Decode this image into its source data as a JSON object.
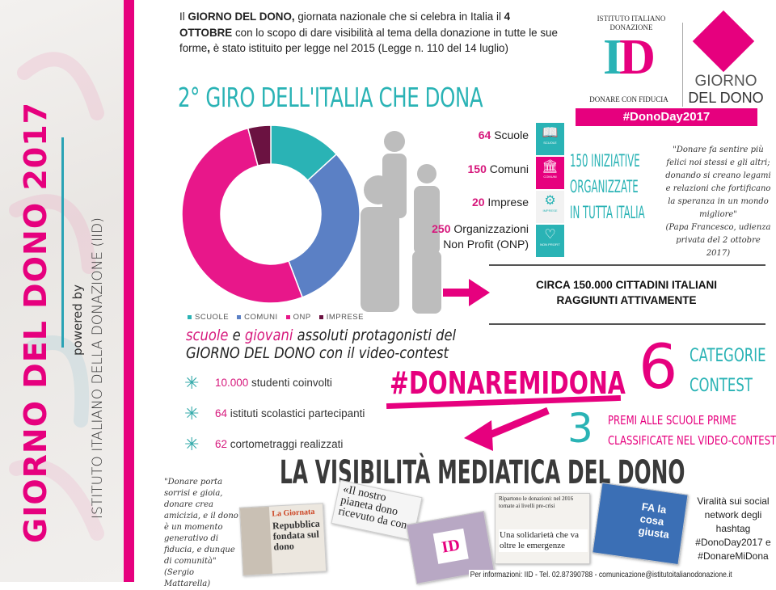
{
  "sidebar": {
    "title": "GIORNO DEL DONO 2017",
    "powered_by": "powered by",
    "org": "ISTITUTO ITALIANO DELLA DONAZIONE (IID)"
  },
  "intro": {
    "p1": "Il ",
    "b1": "GIORNO DEL DONO,",
    "p2": " giornata nazionale che si celebra in Italia il ",
    "b2": "4 OTTOBRE",
    "p3": " con lo scopo di dare visibilità al tema della donazione in tutte le sue forme",
    "b3": ",",
    "p4": " è stato istituito per legge nel 2015 (Legge n. 110 del 14 luglio)"
  },
  "logo": {
    "arc_text": "ISTITUTO ITALIANO DONAZIONE",
    "mark": "ID",
    "tagline": "DONARE CON FIDUCIA",
    "giorno1": "GIORNO",
    "giorno2": "DEL DONO",
    "hashtag": "#DonoDay2017"
  },
  "title": "2° GIRO DELL'ITALIA CHE DONA",
  "chart_data": {
    "type": "pie",
    "donut": true,
    "categories": [
      "SCUOLE",
      "COMUNI",
      "ONP",
      "IMPRESE"
    ],
    "values": [
      64,
      150,
      250,
      20
    ],
    "colors": [
      "#2ab3b5",
      "#5b80c5",
      "#e8178a",
      "#6b1241"
    ],
    "legend": "bottom"
  },
  "stats": [
    {
      "num": "64",
      "label": "Scuole"
    },
    {
      "num": "150",
      "label": "Comuni"
    },
    {
      "num": "20",
      "label": "Imprese"
    },
    {
      "num": "250",
      "label": "Organizzazioni",
      "label2": "Non Profit (ONP)"
    }
  ],
  "strip": [
    {
      "icon": "book-icon",
      "glyph": "📖",
      "label": "SCUOLE",
      "color": "#2ab3b5"
    },
    {
      "icon": "building-icon",
      "glyph": "🏛",
      "label": "COMUNI",
      "color": "#e6007e"
    },
    {
      "icon": "gears-icon",
      "glyph": "⚙",
      "label": "IMPRESE",
      "color": "#f2f2f2"
    },
    {
      "icon": "heart-icon",
      "glyph": "♡",
      "label": "NON PROFIT",
      "color": "#2ab3b5"
    }
  ],
  "iniziative": [
    "150 INIZIATIVE",
    "ORGANIZZATE",
    "IN TUTTA ITALIA"
  ],
  "papa_quote": "\"Donare fa sentire più felici noi stessi e gli altri; donando si creano legami e relazioni che fortificano la speranza in un mondo migliore\"",
  "papa_source": "(Papa Francesco, udienza privata del 2 ottobre 2017)",
  "circa": [
    "CIRCA 150.000 CITTADINI ITALIANI",
    "RAGGIUNTI ATTIVAMENTE"
  ],
  "giovani": {
    "w1": "scuole",
    "w2": " e ",
    "w3": "giovani",
    "w4": " assoluti protagonisti del",
    "line2a": "GIORNO DEL DONO",
    "line2b": " con il video-contest"
  },
  "bullets": [
    {
      "num": "10.000",
      "text": " studenti coinvolti"
    },
    {
      "num": "64",
      "text": " istituti scolastici partecipanti"
    },
    {
      "num": "62",
      "text": " cortometraggi realizzati"
    }
  ],
  "hashtag": "#DONAREMIDONA",
  "six": "6",
  "categorie": [
    "CATEGORIE",
    "CONTEST"
  ],
  "three": "3",
  "premi": [
    "PREMI ALLE SCUOLE PRIME",
    "CLASSIFICATE NEL VIDEO-CONTEST"
  ],
  "visibilita": "LA VISIBILITÀ MEDIATICA DEL DONO",
  "mattarella_quote": "\"Donare porta sorrisi e gioia, donare crea amicizia, e il dono è un momento generativo di fiducia, e dunque di comunità\"",
  "mattarella_source": "(Sergio Mattarella)",
  "press": {
    "p1_kicker": "La Giornata",
    "p1_head": "Repubblica fondata sul dono",
    "p2_head": "«Il nostro pianeta dono ricevuto da con",
    "p3_top": "Ripartono le donazioni: nel 2016 tornate ai livelli pre-crisi",
    "p3_head": "Una solidarietà che va oltre le emergenze",
    "p4_head": "FA la cosa giusta"
  },
  "viral": "Viralità sui social network degli hashtag #DonoDay2017 e #DonareMiDona",
  "footer": "Per informazioni: IID - Tel. 02.87390788 - comunicazione@istitutoitalianodonazione.it"
}
